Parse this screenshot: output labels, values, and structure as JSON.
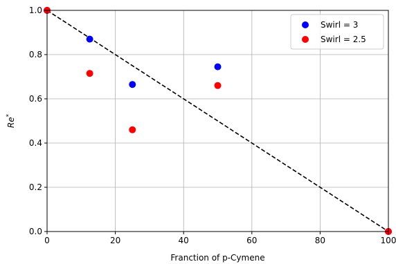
{
  "chart_data": {
    "type": "scatter",
    "xlabel": "Franction of p-Cymene",
    "ylabel": "Re",
    "ylabel_sup": "*",
    "xlim": [
      0,
      100
    ],
    "ylim": [
      0,
      1.0
    ],
    "xticks": [
      0,
      20,
      40,
      60,
      80,
      100
    ],
    "yticks": [
      0.0,
      0.2,
      0.4,
      0.6,
      0.8,
      1.0
    ],
    "xtick_labels": [
      "0",
      "20",
      "40",
      "60",
      "80",
      "100"
    ],
    "ytick_labels": [
      "0.0",
      "0.2",
      "0.4",
      "0.6",
      "0.8",
      "1.0"
    ],
    "grid": true,
    "legend_position": "top-right",
    "series": [
      {
        "name": "Swirl = 3",
        "color": "#0000ff",
        "x": [
          0,
          12.5,
          25,
          50,
          100
        ],
        "y": [
          1.0,
          0.87,
          0.665,
          0.745,
          0.0
        ]
      },
      {
        "name": "Swirl = 2.5",
        "color": "#ff0000",
        "x": [
          0,
          12.5,
          25,
          50,
          100
        ],
        "y": [
          1.0,
          0.715,
          0.46,
          0.66,
          0.0
        ]
      }
    ],
    "reference_line": {
      "style": "dashed",
      "color": "#000000",
      "x": [
        0,
        100
      ],
      "y": [
        1.0,
        0.0
      ]
    }
  }
}
